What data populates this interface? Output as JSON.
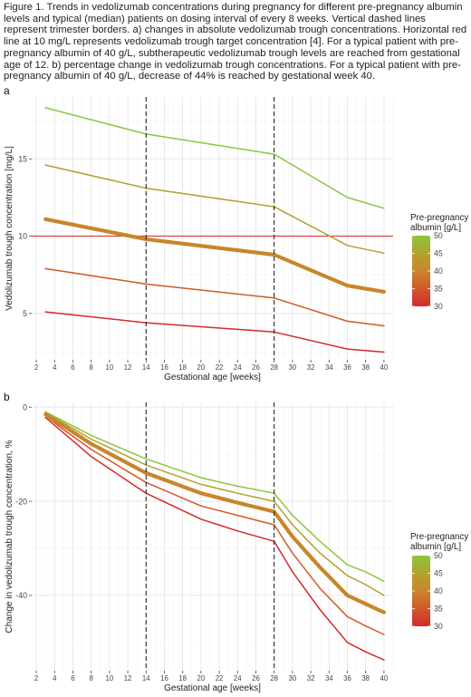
{
  "caption": "Figure 1. Trends in vedolizumab concentrations during pregnancy for different pre-pregnancy albumin levels and typical (median) patients on dosing interval of every 8 weeks. Vertical dashed lines represent trimester borders. a) changes in absolute vedolizumab trough concentrations. Horizontal red line at 10 mg/L represents vedolizumab trough target concentration [4]. For a typical patient with pre-pregnancy albumin of 40 g/L, subtherapeutic vedolizumab trough levels are reached from gestational age of 12. b) percentage change in vedolizumab trough concentrations. For a typical patient with pre-pregnancy albumin of 40 g/L, decrease of 44% is reached by gestational week 40.",
  "chart_data": [
    {
      "panel": "a",
      "type": "line",
      "xlabel": "Gestational age [weeks]",
      "ylabel": "Vedolizumab trough concentration [mg/L]",
      "xlim": [
        1.5,
        41
      ],
      "ylim": [
        2,
        19
      ],
      "xticks": [
        2,
        4,
        6,
        8,
        10,
        12,
        14,
        16,
        18,
        20,
        22,
        24,
        26,
        28,
        30,
        32,
        34,
        36,
        38,
        40
      ],
      "yticks": [
        5,
        10,
        15
      ],
      "grid": true,
      "vlines": [
        14,
        28
      ],
      "hline": 10,
      "hline_color": "#e04040",
      "x": [
        3,
        14,
        28,
        36,
        40
      ],
      "series": [
        {
          "albumin": 50,
          "values": [
            18.3,
            16.6,
            15.3,
            12.5,
            11.8
          ],
          "color": "#8cc63f"
        },
        {
          "albumin": 45,
          "values": [
            14.6,
            13.1,
            11.9,
            9.4,
            8.9
          ],
          "color": "#b3a12c"
        },
        {
          "albumin": 40,
          "values": [
            11.1,
            9.8,
            8.8,
            6.8,
            6.4
          ],
          "color": "#c8862a",
          "bold": true
        },
        {
          "albumin": 35,
          "values": [
            7.9,
            6.9,
            6.0,
            4.5,
            4.2
          ],
          "color": "#d2582a"
        },
        {
          "albumin": 30,
          "values": [
            5.1,
            4.4,
            3.8,
            2.7,
            2.5
          ],
          "color": "#d42a2a"
        }
      ],
      "legend": {
        "title": "Pre-pregnancy albumin [g/L]",
        "ticks": [
          50,
          45,
          40,
          35,
          30
        ],
        "range": [
          30,
          50
        ],
        "placement": "right"
      }
    },
    {
      "panel": "b",
      "type": "line",
      "xlabel": "Gestational age [weeks]",
      "ylabel": "Change in vedolizumab trough concentration, %",
      "xlim": [
        1.5,
        41
      ],
      "ylim": [
        -56,
        1
      ],
      "xticks": [
        2,
        4,
        6,
        8,
        10,
        12,
        14,
        16,
        18,
        20,
        22,
        24,
        26,
        28,
        30,
        32,
        34,
        36,
        38,
        40
      ],
      "yticks": [
        0,
        -20,
        -40
      ],
      "grid": true,
      "vlines": [
        14,
        28
      ],
      "x": [
        3,
        5,
        8,
        14,
        20,
        24,
        28,
        30,
        33,
        36,
        38,
        40
      ],
      "series": [
        {
          "albumin": 50,
          "values": [
            -1.0,
            -3.0,
            -6.0,
            -11.0,
            -15.0,
            -16.8,
            -18.3,
            -23.0,
            -28.5,
            -33.5,
            -35.0,
            -37.0
          ],
          "color": "#8cc63f"
        },
        {
          "albumin": 45,
          "values": [
            -1.2,
            -3.4,
            -6.8,
            -12.3,
            -16.4,
            -18.3,
            -20.0,
            -25.0,
            -31.0,
            -35.8,
            -37.7,
            -40.0
          ],
          "color": "#b3a12c"
        },
        {
          "albumin": 40,
          "values": [
            -1.5,
            -4.0,
            -7.8,
            -14.0,
            -18.3,
            -20.3,
            -22.2,
            -27.5,
            -34.0,
            -40.0,
            -41.8,
            -43.6
          ],
          "color": "#c8862a",
          "bold": true
        },
        {
          "albumin": 35,
          "values": [
            -1.8,
            -4.8,
            -9.0,
            -16.0,
            -21.0,
            -23.0,
            -25.0,
            -31.0,
            -38.5,
            -44.5,
            -46.5,
            -48.3
          ],
          "color": "#d2582a"
        },
        {
          "albumin": 30,
          "values": [
            -2.2,
            -5.5,
            -10.5,
            -18.3,
            -23.8,
            -26.3,
            -28.5,
            -35.0,
            -43.0,
            -50.0,
            -52.0,
            -53.7
          ],
          "color": "#d42a2a"
        }
      ],
      "legend": {
        "title": "Pre-pregnancy albumin [g/L]",
        "ticks": [
          50,
          45,
          40,
          35,
          30
        ],
        "range": [
          30,
          50
        ],
        "placement": "right"
      }
    }
  ]
}
